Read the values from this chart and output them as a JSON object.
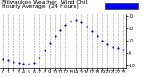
{
  "title": "Milwaukee Weather  Wind Chill\nHourly Average  (24 Hours)",
  "x_values": [
    0,
    1,
    2,
    3,
    4,
    5,
    6,
    7,
    8,
    9,
    10,
    11,
    12,
    13,
    14,
    15,
    16,
    17,
    18,
    19,
    20,
    21,
    22,
    23
  ],
  "y_values": [
    -5,
    -6,
    -7,
    -8,
    -9,
    -9,
    -8,
    -4,
    2,
    8,
    14,
    19,
    23,
    26,
    27,
    25,
    22,
    18,
    14,
    10,
    7,
    5,
    4,
    3
  ],
  "y_min": -12,
  "y_max": 32,
  "dot_color": "#0000dd",
  "dot_size": 2.5,
  "bg_color": "#ffffff",
  "grid_color": "#999999",
  "legend_color": "#0000ff",
  "y_tick_values": [
    -10,
    0,
    10,
    20,
    30
  ],
  "title_fontsize": 4.5,
  "tick_fontsize": 3.5
}
